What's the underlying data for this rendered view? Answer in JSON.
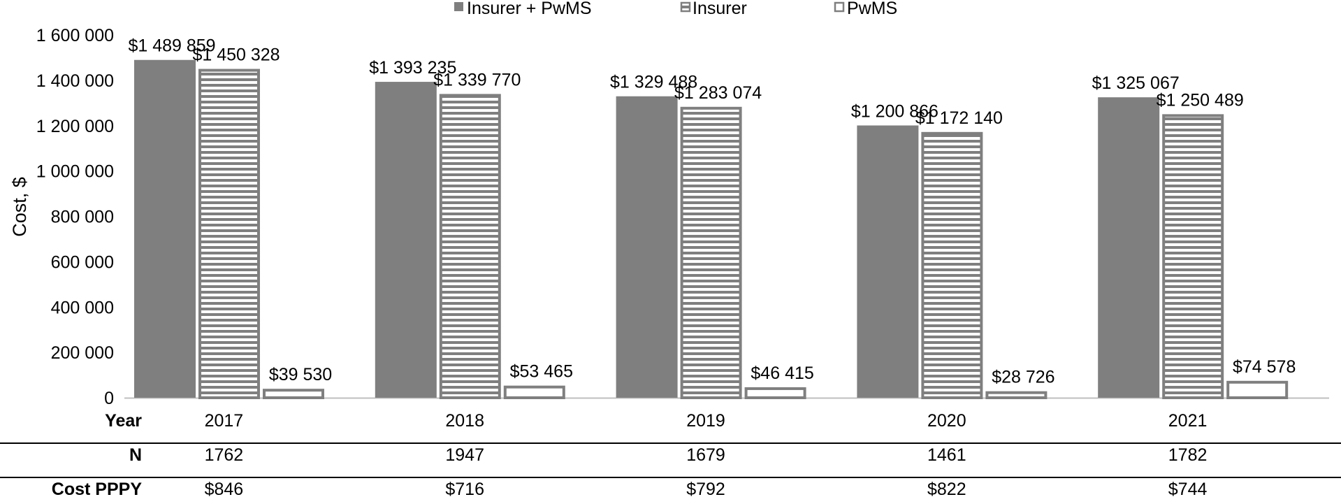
{
  "chart_data": {
    "type": "bar",
    "title": "",
    "ylabel": "Cost, $",
    "xlabel": "",
    "ylim": [
      0,
      1600000
    ],
    "yticks": [
      0,
      200000,
      400000,
      600000,
      800000,
      1000000,
      1200000,
      1400000,
      1600000
    ],
    "ytick_labels": [
      "0",
      "200 000",
      "400 000",
      "600 000",
      "800 000",
      "1 000 000",
      "1 200 000",
      "1 400 000",
      "1 600 000"
    ],
    "categories": [
      "2017",
      "2018",
      "2019",
      "2020",
      "2021"
    ],
    "legend_position": "top",
    "series": [
      {
        "name": "Insurer + PwMS",
        "style": "solid",
        "values": [
          1489859,
          1393235,
          1329488,
          1200866,
          1325067
        ],
        "labels": [
          "$1 489 859",
          "$1 393 235",
          "$1 329 488",
          "$1 200 866",
          "$1 325 067"
        ]
      },
      {
        "name": "Insurer",
        "style": "horizontal-stripes",
        "values": [
          1450328,
          1339770,
          1283074,
          1172140,
          1250489
        ],
        "labels": [
          "$1 450 328",
          "$1 339 770",
          "$1 283 074",
          "$1 172 140",
          "$1 250 489"
        ]
      },
      {
        "name": "PwMS",
        "style": "outline",
        "values": [
          39530,
          53465,
          46415,
          28726,
          74578
        ],
        "labels": [
          "$39 530",
          "$53 465",
          "$46 415",
          "$28 726",
          "$74 578"
        ]
      }
    ],
    "table": {
      "rows": [
        {
          "header": "Year",
          "cells": [
            "2017",
            "2018",
            "2019",
            "2020",
            "2021"
          ]
        },
        {
          "header": "N",
          "cells": [
            "1762",
            "1947",
            "1679",
            "1461",
            "1782"
          ]
        },
        {
          "header": "Cost PPPY",
          "cells": [
            "$846",
            "$716",
            "$792",
            "$822",
            "$744"
          ]
        }
      ]
    }
  },
  "colors": {
    "solid_fill": "#7f7f7f",
    "outline": "#7f7f7f",
    "axis": "#000000",
    "background": "#ffffff"
  }
}
